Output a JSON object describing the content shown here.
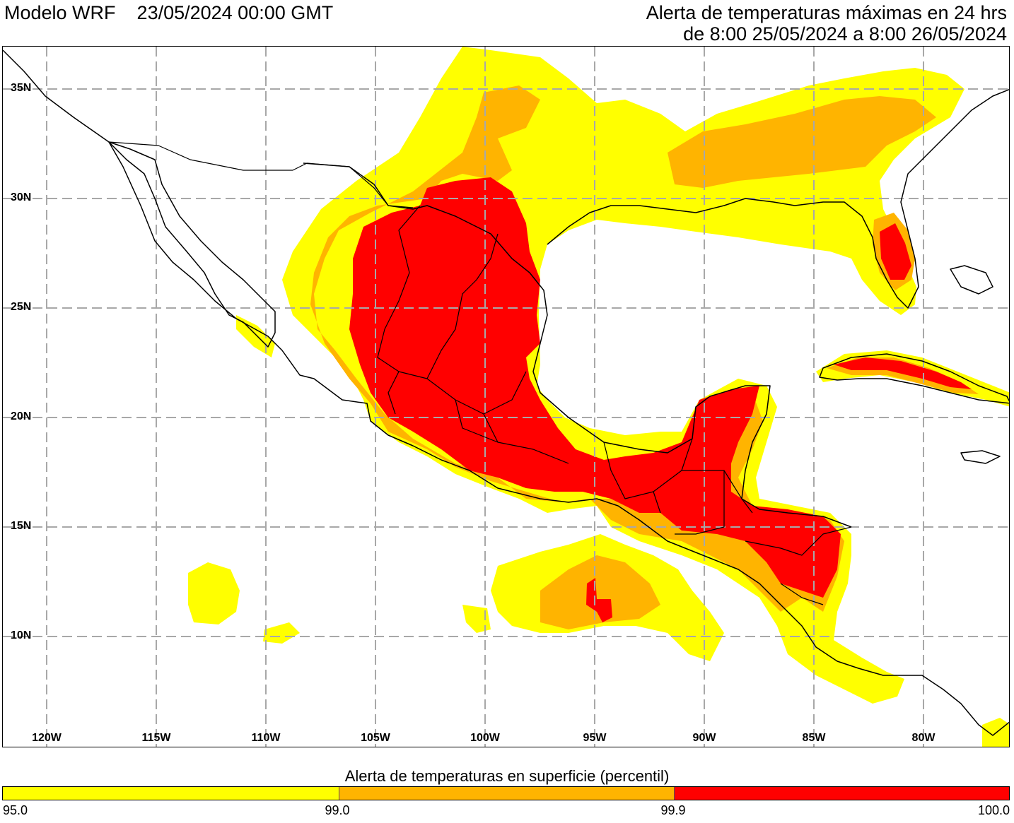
{
  "header": {
    "model": "Modelo WRF",
    "run_time": "23/05/2024 00:00 GMT",
    "alert_title": "Alerta de temperaturas máximas en 24 hrs",
    "alert_period": "de 8:00 25/05/2024 a 8:00 26/05/2024"
  },
  "map": {
    "lat_labels": [
      "35N",
      "30N",
      "25N",
      "20N",
      "15N",
      "10N"
    ],
    "lon_labels": [
      "120W",
      "115W",
      "110W",
      "105W",
      "100W",
      "95W",
      "90W",
      "85W",
      "80W"
    ]
  },
  "legend": {
    "title": "Alerta de temperaturas en superficie (percentil)",
    "ticks": [
      "95.0",
      "99.0",
      "99.9",
      "100.0"
    ],
    "colors": {
      "p95": "#ffff00",
      "p99": "#ffb400",
      "p999": "#ff0000"
    }
  }
}
